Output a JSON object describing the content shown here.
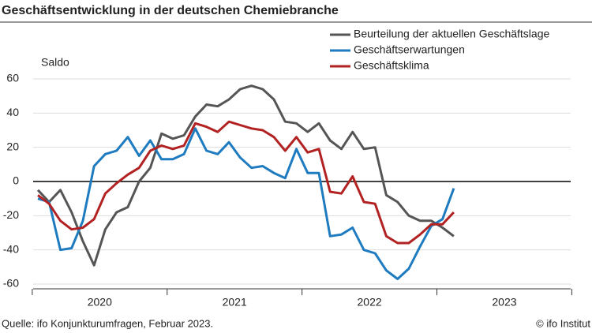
{
  "chart_data": {
    "type": "line",
    "title": "Geschäftsentwicklung in der deutschen Chemiebranche",
    "y_label": "Saldo",
    "source": "Quelle: ifo Konjunkturumfragen, Februar 2023.",
    "credit": "© ifo Institut",
    "years": [
      "2020",
      "2021",
      "2022",
      "2023"
    ],
    "ylim": [
      -60,
      60
    ],
    "yticks": [
      -60,
      -40,
      -20,
      0,
      20,
      40,
      60
    ],
    "grid": true,
    "series": [
      {
        "name": "Beurteilung der aktuellen Geschäftslage",
        "color": "#555555",
        "values": [
          -5,
          -12,
          -5,
          -18,
          -35,
          -49,
          -28,
          -18,
          -15,
          0,
          8,
          28,
          25,
          27,
          38,
          45,
          44,
          48,
          54,
          56,
          54,
          48,
          35,
          34,
          29,
          34,
          24,
          19,
          29,
          19,
          20,
          -8,
          -12,
          -20,
          -23,
          -23,
          -27,
          -32
        ]
      },
      {
        "name": "Geschäftserwartungen",
        "color": "#1f7bbf",
        "values": [
          -10,
          -12,
          -40,
          -39,
          -23,
          9,
          16,
          18,
          26,
          15,
          24,
          13,
          13,
          16,
          31,
          18,
          16,
          23,
          14,
          8,
          9,
          5,
          2,
          19,
          5,
          5,
          -32,
          -31,
          -27,
          -40,
          -42,
          -52,
          -57,
          -51,
          -38,
          -26,
          -22,
          -4
        ]
      },
      {
        "name": "Geschäftsklima",
        "color": "#b22222",
        "values": [
          -8,
          -13,
          -23,
          -28,
          -27,
          -22,
          -7,
          -1,
          4,
          8,
          18,
          21,
          19,
          21,
          34,
          32,
          29,
          35,
          33,
          31,
          30,
          26,
          18,
          26,
          17,
          19,
          -6,
          -7,
          3,
          -12,
          -13,
          -32,
          -36,
          -36,
          -31,
          -25,
          -25,
          -18
        ]
      }
    ]
  }
}
